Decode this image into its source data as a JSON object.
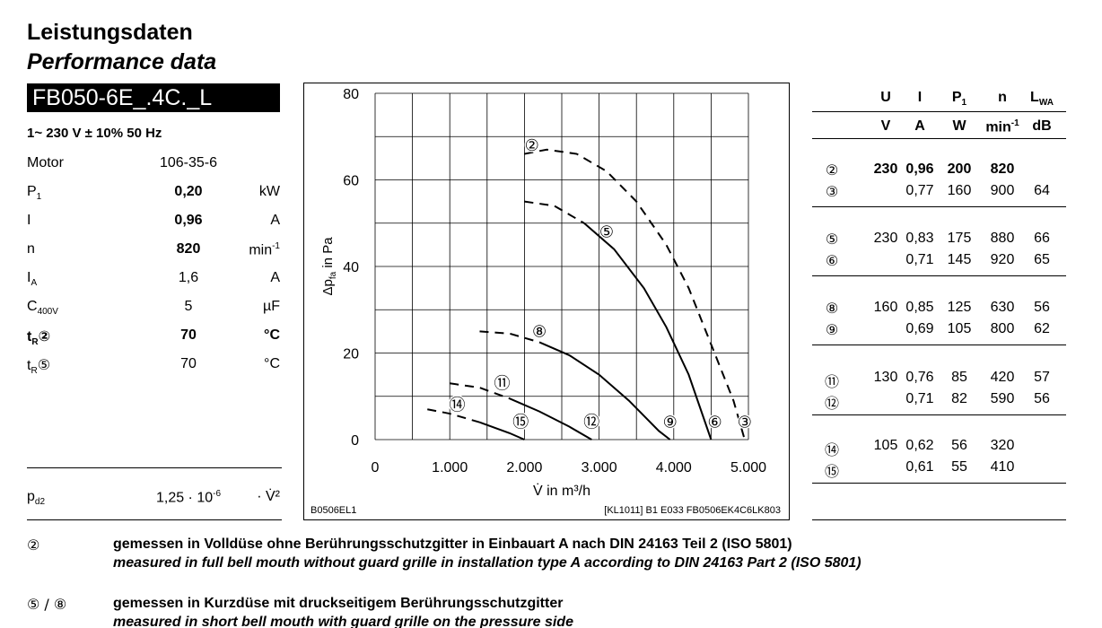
{
  "header": {
    "title_de": "Leistungsdaten",
    "title_en": "Performance data",
    "model": "FB050-6E_.4C._L",
    "supply": "1~ 230 V ± 10% 50 Hz"
  },
  "specs": [
    {
      "name": "Motor",
      "value": "106-35-6",
      "unit": ""
    },
    {
      "name": "P",
      "sub": "1",
      "value": "0,20",
      "unit": "kW"
    },
    {
      "name": "I",
      "value": "0,96",
      "unit": "A"
    },
    {
      "name": "n",
      "value": "820",
      "unit": "min",
      "unit_sup": "-1"
    },
    {
      "name": "I",
      "sub": "A",
      "value": "1,6",
      "unit": "A"
    },
    {
      "name": "C",
      "sub": "400V",
      "value": "5",
      "unit": "µF"
    },
    {
      "name": "t",
      "sub": "R",
      "mark": "②",
      "value": "70",
      "unit": "°C"
    },
    {
      "name": "t",
      "sub": "R",
      "mark": "⑤",
      "value": "70",
      "unit": "°C"
    }
  ],
  "pd2": {
    "name": "p",
    "sub": "d2",
    "value": "1,25 · 10",
    "value_sup": "-6",
    "unit": "· V̇²"
  },
  "chart_data": {
    "type": "line",
    "xlabel": "V̇ in m³/h",
    "ylabel": "Δp",
    "ylabel_sub": "fa",
    "ylabel_suffix": " in Pa",
    "xlim": [
      0,
      5000
    ],
    "ylim": [
      0,
      80
    ],
    "x_ticks": [
      0,
      1000,
      2000,
      3000,
      4000,
      5000
    ],
    "x_tick_labels": [
      "0",
      "1.000",
      "2.000",
      "3.000",
      "4.000",
      "5.000"
    ],
    "y_ticks": [
      0,
      20,
      40,
      60,
      80
    ],
    "grid": true,
    "footer_left": "B0506EL1",
    "footer_right": "[KL1011]  B1 E033 FB0506EK4C6LK803",
    "series": [
      {
        "name": "②",
        "style": "dashed",
        "x": [
          2000,
          2300,
          2700,
          3100,
          3500,
          3900,
          4200,
          4500,
          4800,
          4950
        ],
        "y": [
          66,
          67,
          66,
          62,
          55,
          45,
          35,
          22,
          9,
          0
        ]
      },
      {
        "name": "⑤",
        "style": "dashed-solid",
        "x": [
          2000,
          2400,
          2800,
          3200,
          3600,
          3900,
          4200,
          4400,
          4500
        ],
        "y": [
          55,
          54,
          50,
          44,
          35,
          26,
          15,
          5,
          0
        ]
      },
      {
        "name": "⑧",
        "style": "dashed-solid",
        "x": [
          1400,
          1800,
          2200,
          2600,
          3000,
          3400,
          3800,
          3950
        ],
        "y": [
          25,
          24.5,
          22.5,
          19.5,
          15,
          9,
          2,
          0
        ]
      },
      {
        "name": "⑪",
        "style": "dashed-solid",
        "x": [
          1000,
          1400,
          1800,
          2200,
          2600,
          2900
        ],
        "y": [
          13,
          12,
          9.5,
          6.5,
          3,
          0
        ]
      },
      {
        "name": "⑭",
        "style": "dashed-solid",
        "x": [
          700,
          1000,
          1400,
          1800,
          2000
        ],
        "y": [
          7,
          6,
          4,
          1.5,
          0
        ]
      }
    ],
    "point_labels": [
      {
        "label": "②",
        "x": 2100,
        "y": 68
      },
      {
        "label": "⑤",
        "x": 3100,
        "y": 48
      },
      {
        "label": "⑧",
        "x": 2200,
        "y": 25
      },
      {
        "label": "⑪",
        "x": 1700,
        "y": 13
      },
      {
        "label": "⑭",
        "x": 1100,
        "y": 8
      },
      {
        "label": "⑮",
        "x": 1950,
        "y": 4
      },
      {
        "label": "⑫",
        "x": 2900,
        "y": 4
      },
      {
        "label": "⑨",
        "x": 3950,
        "y": 4
      },
      {
        "label": "⑥",
        "x": 4550,
        "y": 4
      },
      {
        "label": "③",
        "x": 4950,
        "y": 4
      }
    ]
  },
  "table": {
    "head1": [
      "U",
      "I",
      "P",
      "n",
      "L"
    ],
    "head1_sub": [
      "",
      "",
      "1",
      "",
      "WA"
    ],
    "head2": [
      "V",
      "A",
      "W",
      "min",
      "dB"
    ],
    "head2_sup": [
      "",
      "",
      "",
      "-1",
      ""
    ],
    "groups": [
      [
        {
          "mark": "②",
          "U": "230",
          "I": "0,96",
          "P": "200",
          "n": "820",
          "L": "",
          "bold": true
        },
        {
          "mark": "③",
          "U": "",
          "I": "0,77",
          "P": "160",
          "n": "900",
          "L": "64"
        }
      ],
      [
        {
          "mark": "⑤",
          "U": "230",
          "I": "0,83",
          "P": "175",
          "n": "880",
          "L": "66"
        },
        {
          "mark": "⑥",
          "U": "",
          "I": "0,71",
          "P": "145",
          "n": "920",
          "L": "65"
        }
      ],
      [
        {
          "mark": "⑧",
          "U": "160",
          "I": "0,85",
          "P": "125",
          "n": "630",
          "L": "56"
        },
        {
          "mark": "⑨",
          "U": "",
          "I": "0,69",
          "P": "105",
          "n": "800",
          "L": "62"
        }
      ],
      [
        {
          "mark": "⑪",
          "U": "130",
          "I": "0,76",
          "P": "85",
          "n": "420",
          "L": "57"
        },
        {
          "mark": "⑫",
          "U": "",
          "I": "0,71",
          "P": "82",
          "n": "590",
          "L": "56"
        }
      ],
      [
        {
          "mark": "⑭",
          "U": "105",
          "I": "0,62",
          "P": "56",
          "n": "320",
          "L": ""
        },
        {
          "mark": "⑮",
          "U": "",
          "I": "0,61",
          "P": "55",
          "n": "410",
          "L": ""
        }
      ]
    ]
  },
  "notes": [
    {
      "mark": "②",
      "de": "gemessen in Volldüse ohne Berührungsschutzgitter in Einbauart A nach DIN 24163 Teil 2 (ISO 5801)",
      "en": "measured in full bell mouth without guard grille in installation type A according to DIN 24163 Part 2 (ISO 5801)"
    },
    {
      "mark": "⑤ / ⑧",
      "de": "gemessen in Kurzdüse mit druckseitigem Berührungsschutzgitter",
      "en": "measured in short bell mouth with guard grille on the pressure side"
    }
  ]
}
